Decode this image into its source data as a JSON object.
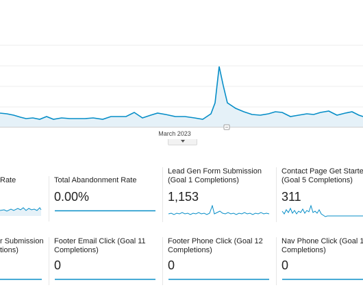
{
  "overview_chart": {
    "x_axis_label": "March 2023",
    "colors": {
      "line": "#058dc7",
      "fill": "#e5f1f8",
      "grid": "#ececec"
    }
  },
  "metric_tiles": {
    "row1": [
      {
        "title": "Rate",
        "value": ""
      },
      {
        "title": "Total Abandonment Rate",
        "value": "0.00%"
      },
      {
        "title": "Lead Gen Form Submission\n(Goal 1 Completions)",
        "value": "1,153"
      },
      {
        "title": "Contact Page Get Starte\n(Goal 5 Completions)",
        "value": "311"
      }
    ],
    "row2": [
      {
        "title": "r Submission\ntions)",
        "value": ""
      },
      {
        "title": "Footer Email Click (Goal 11\nCompletions)",
        "value": "0"
      },
      {
        "title": "Footer Phone Click (Goal 12\nCompletions)",
        "value": "0"
      },
      {
        "title": "Nav Phone Click (Goal 1\nCompletions)",
        "value": "0"
      }
    ]
  }
}
